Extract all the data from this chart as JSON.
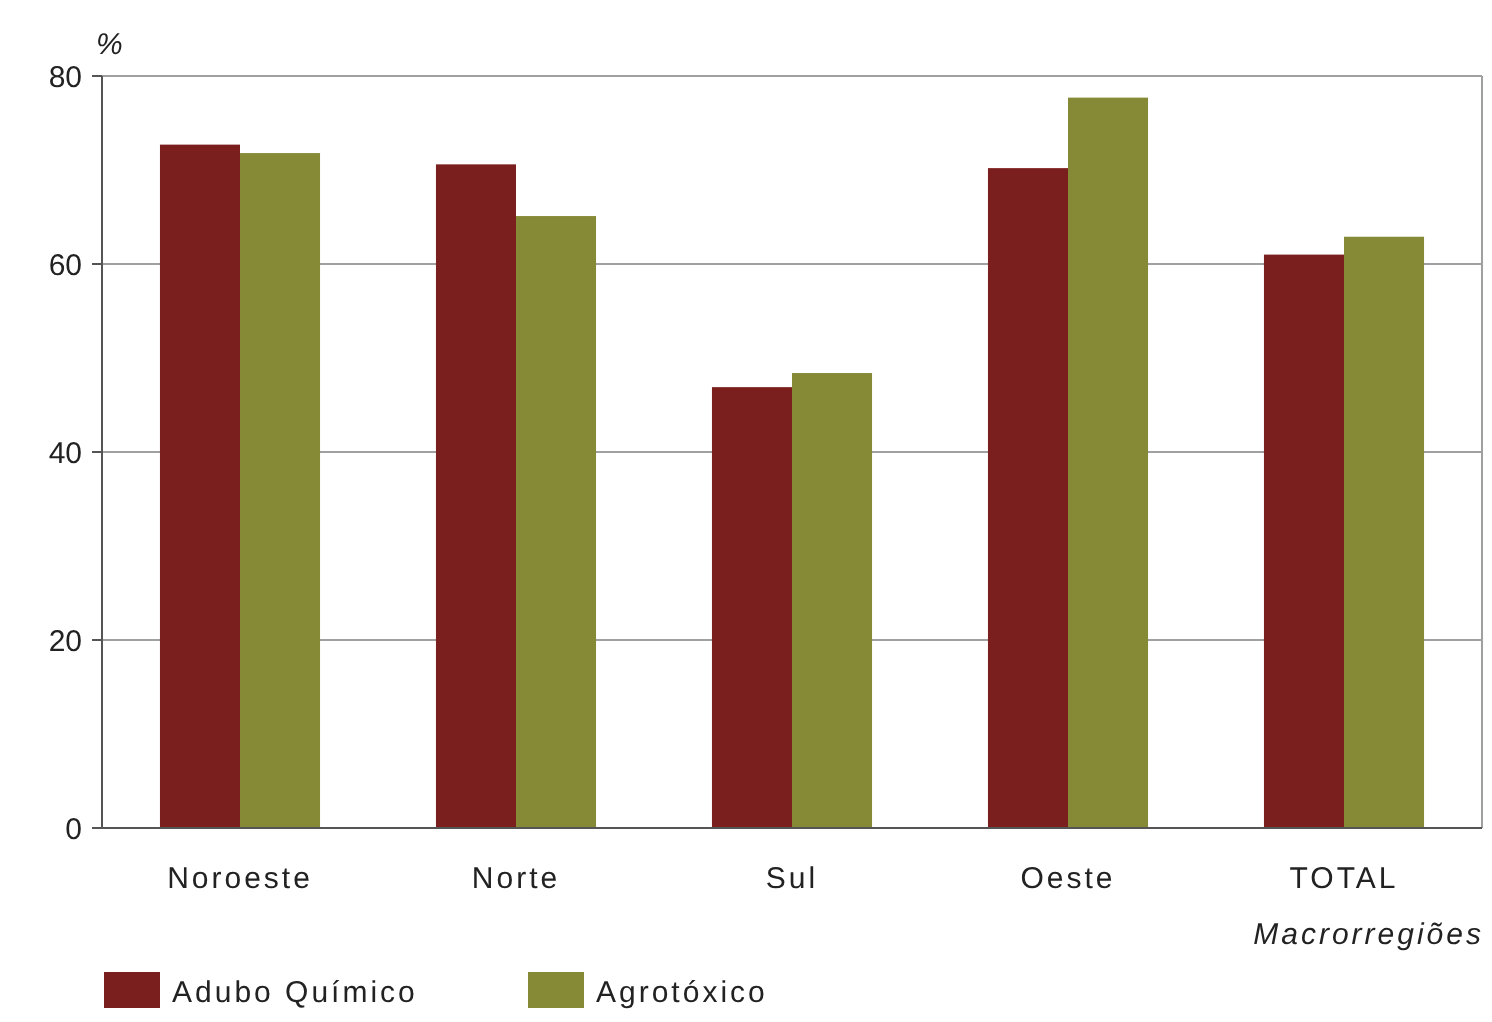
{
  "chart_data": {
    "type": "bar",
    "ylabel": "%",
    "xlabel": "Macrorregiões",
    "categories": [
      "Noroeste",
      "Norte",
      "Sul",
      "Oeste",
      "TOTAL"
    ],
    "series": [
      {
        "name": "Adubo Químico",
        "color": "#7b1e1e",
        "values": [
          72.7,
          70.6,
          46.9,
          70.2,
          61.0
        ]
      },
      {
        "name": "Agrotóxico",
        "color": "#868a36",
        "values": [
          71.8,
          65.1,
          48.4,
          77.7,
          62.9
        ]
      }
    ],
    "ylim": [
      0,
      80
    ],
    "yticks": [
      0,
      20,
      40,
      60,
      80
    ],
    "grid": "y",
    "legend": "bottom"
  }
}
